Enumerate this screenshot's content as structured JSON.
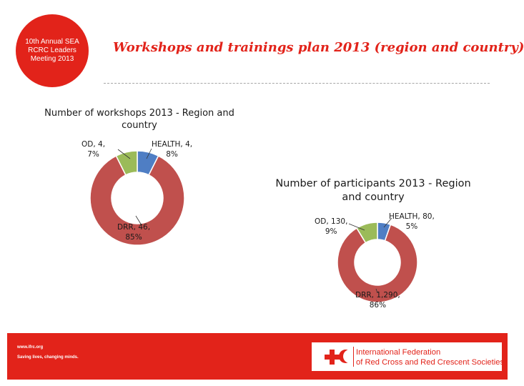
{
  "badge": {
    "line1": "10th Annual SEA",
    "line2": "RCRC Leaders",
    "line3": "Meeting 2013"
  },
  "slide_title": "Workshops and trainings plan 2013 (region and country)",
  "colors": {
    "health": "#4f7ec4",
    "drr": "#c0504d",
    "od": "#9bbb59",
    "brand": "#e2231a"
  },
  "chart_data": [
    {
      "type": "pie",
      "variant": "donut",
      "title_line1": "Number of workshops 2013 - Region and",
      "title_line2": "country",
      "categories": [
        "HEALTH",
        "DRR",
        "OD"
      ],
      "values": [
        4,
        46,
        4
      ],
      "percents": [
        "8%",
        "85%",
        "7%"
      ],
      "labels": [
        {
          "line1": "HEALTH, 4,",
          "line2": "8%"
        },
        {
          "line1": "DRR, 46,",
          "line2": "85%"
        },
        {
          "line1": "OD, 4,",
          "line2": "7%"
        }
      ]
    },
    {
      "type": "pie",
      "variant": "donut",
      "title_line1": "Number of participants 2013 - Region",
      "title_line2": "and country",
      "categories": [
        "HEALTH",
        "DRR",
        "OD"
      ],
      "values": [
        80,
        1290,
        130
      ],
      "percents": [
        "5%",
        "86%",
        "9%"
      ],
      "labels": [
        {
          "line1": "HEALTH, 80,",
          "line2": "5%"
        },
        {
          "line1": "DRR, 1,290,",
          "line2": "86%"
        },
        {
          "line1": "OD, 130,",
          "line2": "9%"
        }
      ]
    }
  ],
  "footer": {
    "url": "www.ifrc.org",
    "slogan": "Saving lives, changing minds.",
    "org_line1": "International Federation",
    "org_line2": "of Red Cross and Red Crescent Societies"
  }
}
